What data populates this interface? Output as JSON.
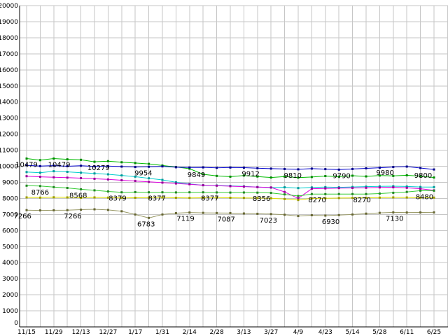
{
  "chart_data": {
    "type": "line",
    "title": "",
    "xlabel": "",
    "ylabel": "",
    "ylim": [
      0,
      20000
    ],
    "y_tick_step": 1000,
    "y_tick_labels": [
      "0",
      "1000",
      "2000",
      "3000",
      "4000",
      "5000",
      "6000",
      "7000",
      "8000",
      "9000",
      "10000",
      "11000",
      "12000",
      "13000",
      "14000",
      "15000",
      "16000",
      "17000",
      "18000",
      "19000",
      "20000"
    ],
    "x_tick_labels": [
      "11/15",
      "11/29",
      "12/13",
      "12/27",
      "1/17",
      "1/31",
      "2/14",
      "2/28",
      "3/13",
      "3/27",
      "4/9",
      "4/23",
      "5/14",
      "5/28",
      "6/11",
      "6/25"
    ],
    "points_per_x_label": 2,
    "n_points": 31,
    "grid": true,
    "legend": "none",
    "colors": {
      "grid": "#c6c6c6",
      "axis": "#000000",
      "background": "#ffffff",
      "label_text": "#000000"
    },
    "series": [
      {
        "name": "series-green-top",
        "color": "#00bb00",
        "marker_color": "#008800",
        "values": [
          10479,
          10380,
          10479,
          10430,
          10400,
          10279,
          10320,
          10250,
          10200,
          10150,
          10050,
          9950,
          9849,
          9500,
          9400,
          9350,
          9420,
          9360,
          9300,
          9360,
          9290,
          9330,
          9390,
          9350,
          9410,
          9370,
          9420,
          9400,
          9440,
          9380,
          9300
        ]
      },
      {
        "name": "series-blue",
        "color": "#0000cc",
        "marker_color": "#000088",
        "values": [
          10060,
          10010,
          10040,
          10000,
          10030,
          9990,
          10010,
          9980,
          9954,
          9970,
          9990,
          9940,
          9920,
          9930,
          9900,
          9920,
          9912,
          9880,
          9850,
          9830,
          9810,
          9850,
          9820,
          9790,
          9830,
          9870,
          9910,
          9950,
          9980,
          9890,
          9800
        ]
      },
      {
        "name": "series-cyan",
        "color": "#00cccc",
        "marker_color": "#009999",
        "values": [
          9640,
          9600,
          9690,
          9650,
          9600,
          9550,
          9500,
          9430,
          9350,
          9250,
          9150,
          9000,
          8900,
          8820,
          8800,
          8780,
          8750,
          8700,
          8670,
          8690,
          8640,
          8680,
          8700,
          8690,
          8710,
          8730,
          8750,
          8760,
          8740,
          8710,
          8700
        ]
      },
      {
        "name": "series-magenta",
        "color": "#dd00dd",
        "marker_color": "#990099",
        "values": [
          9380,
          9340,
          9310,
          9290,
          9260,
          9220,
          9180,
          9130,
          9080,
          9030,
          8980,
          8930,
          8880,
          8820,
          8790,
          8760,
          8730,
          8700,
          8680,
          8400,
          8000,
          8600,
          8620,
          8640,
          8650,
          8660,
          8680,
          8690,
          8660,
          8600,
          8500
        ]
      },
      {
        "name": "series-green-mid",
        "color": "#33cc33",
        "marker_color": "#228822",
        "values": [
          8790,
          8766,
          8700,
          8650,
          8568,
          8500,
          8430,
          8379,
          8390,
          8380,
          8377,
          8370,
          8380,
          8377,
          8370,
          8360,
          8365,
          8356,
          8340,
          8250,
          8150,
          8270,
          8265,
          8270,
          8268,
          8270,
          8300,
          8350,
          8400,
          8480,
          8480
        ]
      },
      {
        "name": "series-yellow",
        "color": "#dddd00",
        "marker_color": "#999900",
        "values": [
          8060,
          8050,
          8070,
          8060,
          8040,
          8060,
          8050,
          8030,
          8040,
          8050,
          8060,
          8040,
          8030,
          8040,
          8050,
          8040,
          8030,
          8020,
          8010,
          7960,
          7900,
          8000,
          8010,
          8020,
          8030,
          8040,
          8050,
          8060,
          8055,
          8045,
          8050
        ]
      },
      {
        "name": "series-olive-bottom",
        "color": "#999966",
        "marker_color": "#666633",
        "values": [
          7266,
          7250,
          7260,
          7266,
          7300,
          7320,
          7280,
          7200,
          7000,
          6783,
          7000,
          7080,
          7119,
          7100,
          7090,
          7087,
          7060,
          7040,
          7023,
          6980,
          6900,
          6950,
          6930,
          6960,
          7000,
          7050,
          7100,
          7130,
          7120,
          7125,
          7130
        ]
      }
    ],
    "annotations": [
      {
        "text": "10479",
        "week": 0,
        "value": 10479
      },
      {
        "text": "10479",
        "week": 2.4,
        "value": 10479
      },
      {
        "text": "10279",
        "week": 5.3,
        "value": 10279
      },
      {
        "text": "9954",
        "week": 8.6,
        "value": 9954
      },
      {
        "text": "9849",
        "week": 12.5,
        "value": 9849
      },
      {
        "text": "9912",
        "week": 16.5,
        "value": 9912
      },
      {
        "text": "9810",
        "week": 19.6,
        "value": 9810
      },
      {
        "text": "9790",
        "week": 23.2,
        "value": 9790
      },
      {
        "text": "9980",
        "week": 26.4,
        "value": 9980
      },
      {
        "text": "9800",
        "week": 29.2,
        "value": 9800
      },
      {
        "text": "8766",
        "week": 1.0,
        "value": 8766
      },
      {
        "text": "8568",
        "week": 3.8,
        "value": 8568
      },
      {
        "text": "8379",
        "week": 6.7,
        "value": 8379
      },
      {
        "text": "8377",
        "week": 9.6,
        "value": 8377
      },
      {
        "text": "8377",
        "week": 13.5,
        "value": 8377
      },
      {
        "text": "8356",
        "week": 17.3,
        "value": 8356
      },
      {
        "text": "8270",
        "week": 21.4,
        "value": 8270
      },
      {
        "text": "8270",
        "week": 24.7,
        "value": 8270
      },
      {
        "text": "8480",
        "week": 29.3,
        "value": 8480
      },
      {
        "text": "7266",
        "week": -0.3,
        "value": 7266
      },
      {
        "text": "7266",
        "week": 3.4,
        "value": 7266
      },
      {
        "text": "6783",
        "week": 8.8,
        "value": 6783
      },
      {
        "text": "7119",
        "week": 11.7,
        "value": 7119
      },
      {
        "text": "7087",
        "week": 14.7,
        "value": 7087
      },
      {
        "text": "7023",
        "week": 17.8,
        "value": 7023
      },
      {
        "text": "6930",
        "week": 22.4,
        "value": 6930
      },
      {
        "text": "7130",
        "week": 27.1,
        "value": 7130
      }
    ]
  }
}
